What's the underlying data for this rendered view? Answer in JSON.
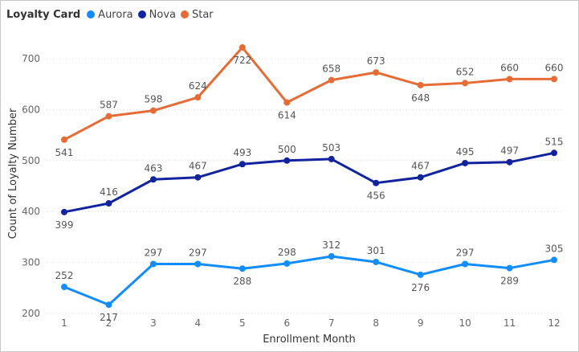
{
  "legend": {
    "title": "Loyalty Card",
    "items": [
      {
        "name": "Aurora",
        "color": "#118DFF"
      },
      {
        "name": "Nova",
        "color": "#12239E"
      },
      {
        "name": "Star",
        "color": "#E66C37"
      }
    ]
  },
  "chart_data": {
    "type": "line",
    "title": "",
    "xlabel": "Enrollment Month",
    "ylabel": "Count of Loyalty Number",
    "x": [
      1,
      2,
      3,
      4,
      5,
      6,
      7,
      8,
      9,
      10,
      11,
      12
    ],
    "ylim": [
      200,
      740
    ],
    "yticks": [
      200,
      300,
      400,
      500,
      600,
      700
    ],
    "grid": true,
    "legend_position": "top-left",
    "series": [
      {
        "name": "Aurora",
        "color": "#118DFF",
        "values": [
          252,
          217,
          297,
          297,
          288,
          298,
          312,
          301,
          276,
          297,
          289,
          305
        ]
      },
      {
        "name": "Nova",
        "color": "#12239E",
        "values": [
          399,
          416,
          463,
          467,
          493,
          500,
          503,
          456,
          467,
          495,
          497,
          515
        ]
      },
      {
        "name": "Star",
        "color": "#E66C37",
        "values": [
          541,
          587,
          598,
          624,
          722,
          614,
          658,
          673,
          648,
          652,
          660,
          660
        ]
      }
    ]
  }
}
